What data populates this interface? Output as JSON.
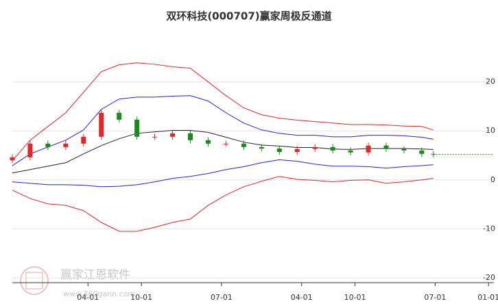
{
  "chart_data": {
    "type": "candlestick_channel",
    "title": "双环科技(000707)赢家周极反通道",
    "watermark": {
      "brand": "赢家江恩软件",
      "url": "www.360gann.com"
    },
    "x": [
      0.5,
      2.5,
      4.5,
      6.5,
      8.5,
      10.5,
      12.5,
      14.5,
      16.5,
      18.5,
      20.5,
      22.5,
      24.5,
      26.5,
      28.5,
      30.5,
      32.5,
      34.5,
      36.5,
      38.5,
      40.5,
      42.5,
      44.5,
      46.5,
      47.8
    ],
    "xlim": [
      -0.5,
      54.6
    ],
    "xticks": [
      {
        "value": 9,
        "label": "04-01"
      },
      {
        "value": 15,
        "label": "10-01"
      },
      {
        "value": 24,
        "label": "07-01"
      },
      {
        "value": 33,
        "label": "04-01"
      },
      {
        "value": 39,
        "label": "10-01"
      },
      {
        "value": 48,
        "label": "07-01"
      },
      {
        "value": 54,
        "label": "01-01"
      }
    ],
    "ylim": [
      -21,
      31
    ],
    "yticks": [
      20,
      10,
      0,
      -10,
      -20
    ],
    "grid": true,
    "series": [
      {
        "color": "#e52222",
        "values": [
          3.9,
          8.1,
          10.9,
          13.7,
          17.9,
          22.1,
          23.5,
          23.9,
          23.6,
          23.1,
          22.8,
          20,
          17.2,
          14.7,
          13.3,
          12.6,
          12.2,
          11.9,
          11.6,
          11.3,
          11.3,
          11.2,
          11.0,
          10.9,
          10.2
        ]
      },
      {
        "color": "#2222dd",
        "values": [
          2.9,
          5.3,
          6.7,
          8.1,
          10.2,
          14.4,
          16.5,
          16.9,
          16.9,
          17.1,
          17.2,
          16.1,
          13.7,
          11.6,
          10.2,
          9.5,
          9.1,
          9.1,
          8.8,
          8.8,
          9.1,
          9.1,
          9.0,
          8.7,
          8.3
        ]
      },
      {
        "color": "#222222",
        "values": [
          1.4,
          2.1,
          2.8,
          3.5,
          5.3,
          7.0,
          8.4,
          9.5,
          9.8,
          10.1,
          10.1,
          9.7,
          8.7,
          7.7,
          7.1,
          6.9,
          6.6,
          6.6,
          6.3,
          6.2,
          6.4,
          6.4,
          6.4,
          6.3,
          6.2
        ]
      },
      {
        "color": "#2222dd",
        "values": [
          -0.4,
          -0.7,
          -1.0,
          -1.0,
          -1.1,
          -1.4,
          -1.3,
          -1.0,
          -0.4,
          0.3,
          0.7,
          1.3,
          2.1,
          2.7,
          3.5,
          4.1,
          3.8,
          3.2,
          2.8,
          2.8,
          2.7,
          2.4,
          2.7,
          2.9,
          3.1
        ]
      },
      {
        "color": "#e52222",
        "values": [
          -2.1,
          -3.8,
          -4.9,
          -5.2,
          -6.3,
          -8.7,
          -10.5,
          -10.5,
          -9.7,
          -8.7,
          -8.0,
          -5.2,
          -3.1,
          -1.4,
          -0.3,
          0.7,
          0.1,
          -0.1,
          -0.4,
          -0.1,
          0.0,
          -0.7,
          -0.4,
          0.0,
          0.3
        ]
      }
    ],
    "candles": {
      "up_color": "#e02828",
      "down_color": "#1a8a1a",
      "open": [
        4.0,
        4.6,
        7.4,
        6.7,
        7.4,
        8.8,
        13.7,
        12.3,
        8.8,
        8.8,
        9.5,
        8.1,
        7.4,
        7.4,
        6.7,
        6.4,
        5.7,
        6.3,
        6.7,
        6.0,
        5.6,
        7.0,
        6.3,
        6.0,
        5.3
      ],
      "close": [
        4.6,
        7.4,
        6.7,
        7.4,
        8.8,
        13.7,
        12.3,
        8.8,
        8.8,
        9.5,
        8.1,
        7.4,
        7.4,
        6.7,
        6.4,
        5.7,
        6.3,
        6.7,
        6.0,
        5.6,
        7.0,
        6.3,
        6.0,
        5.3,
        5.2
      ],
      "high": [
        5.2,
        8.0,
        8.0,
        8.0,
        9.4,
        14.3,
        14.3,
        12.9,
        9.4,
        10.1,
        10.1,
        8.7,
        8.0,
        8.0,
        7.3,
        7.0,
        6.9,
        7.3,
        7.3,
        6.6,
        7.6,
        7.6,
        6.9,
        6.6,
        5.9
      ],
      "low": [
        3.4,
        4.0,
        6.1,
        6.1,
        6.8,
        8.2,
        11.7,
        8.2,
        8.2,
        8.2,
        7.5,
        6.8,
        6.8,
        6.1,
        5.8,
        5.1,
        5.1,
        5.7,
        5.4,
        5.0,
        5.0,
        5.7,
        5.4,
        4.7,
        4.6
      ]
    },
    "last_close_line_color": "#1a8a1a"
  }
}
